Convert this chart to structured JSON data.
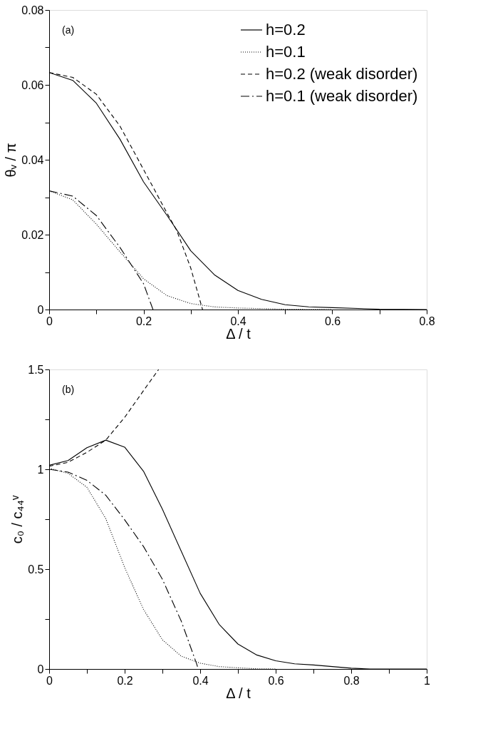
{
  "chart_data": [
    {
      "type": "line",
      "xlabel": "Δ / t",
      "ylabel": "θᵥ / π",
      "annotations": [
        "(a)"
      ],
      "legend": "top right",
      "grid": false,
      "marker": "none",
      "xlim": [
        0,
        0.8
      ],
      "ylim": [
        0,
        0.08
      ],
      "xticks": [
        0,
        {
          "value": 0.1,
          "label": null
        },
        0.2,
        {
          "value": 0.3,
          "label": null
        },
        0.4,
        {
          "value": 0.5,
          "label": null
        },
        0.6,
        {
          "value": 0.7,
          "label": null
        },
        0.8
      ],
      "yticks": [
        0,
        {
          "value": 0.01,
          "label": null
        },
        0.02,
        {
          "value": 0.03,
          "label": null
        },
        0.04,
        {
          "value": 0.05,
          "label": null
        },
        0.06,
        {
          "value": 0.07,
          "label": null
        },
        0.08
      ],
      "series": [
        {
          "name": "h=0.2",
          "color": "#000000",
          "line_style": "solid",
          "x": [
            0,
            0.05,
            0.1,
            0.15,
            0.2,
            0.25,
            0.3,
            0.35,
            0.4,
            0.45,
            0.5,
            0.55,
            0.6,
            0.7,
            0.8
          ],
          "values": [
            0.0633,
            0.0612,
            0.0551,
            0.0455,
            0.0341,
            0.0251,
            0.0157,
            0.0093,
            0.0051,
            0.0027,
            0.0013,
            0.0007,
            0.0005,
            0.0001,
            0
          ]
        },
        {
          "name": "h=0.1",
          "color": "#000000",
          "line_style": "dotted",
          "x": [
            0,
            0.05,
            0.1,
            0.15,
            0.2,
            0.25,
            0.3,
            0.35,
            0.4,
            0.5,
            0.6
          ],
          "values": [
            0.0317,
            0.0293,
            0.0228,
            0.0154,
            0.0082,
            0.0037,
            0.0016,
            0.0007,
            0.0004,
            0.0001,
            0
          ]
        },
        {
          "name": "h=0.2 (weak disorder)",
          "color": "#000000",
          "line_style": "dashed",
          "x": [
            0,
            0.05,
            0.1,
            0.15,
            0.2,
            0.25,
            0.27,
            0.3,
            0.325
          ],
          "values": [
            0.0633,
            0.062,
            0.0575,
            0.049,
            0.0374,
            0.0257,
            0.0212,
            0.0111,
            0
          ]
        },
        {
          "name": "h=0.1 (weak disorder)",
          "color": "#000000",
          "line_style": "dashdot",
          "x": [
            0,
            0.05,
            0.1,
            0.15,
            0.2,
            0.22
          ],
          "values": [
            0.0317,
            0.0303,
            0.0251,
            0.0166,
            0.0069,
            0
          ]
        }
      ]
    },
    {
      "type": "line",
      "xlabel": "Δ / t",
      "ylabel": "c₀ / c₄₄ᵛ",
      "annotations": [
        "(b)"
      ],
      "legend": "top right",
      "grid": false,
      "marker": "none",
      "xlim": [
        0,
        1
      ],
      "ylim": [
        0,
        1.5
      ],
      "xticks": [
        0,
        {
          "value": 0.1,
          "label": null
        },
        0.2,
        {
          "value": 0.3,
          "label": null
        },
        0.4,
        {
          "value": 0.5,
          "label": null
        },
        0.6,
        {
          "value": 0.7,
          "label": null
        },
        0.8,
        {
          "value": 0.9,
          "label": null
        },
        1
      ],
      "yticks": [
        0,
        {
          "value": 0.25,
          "label": null
        },
        0.5,
        {
          "value": 0.75,
          "label": null
        },
        1,
        {
          "value": 1.25,
          "label": null
        },
        1.5
      ],
      "series": [
        {
          "name": "h=0.2",
          "color": "#000000",
          "line_style": "solid",
          "x": [
            0,
            0.05,
            0.1,
            0.15,
            0.2,
            0.25,
            0.3,
            0.35,
            0.4,
            0.45,
            0.5,
            0.55,
            0.6,
            0.65,
            0.7,
            0.75,
            0.8,
            0.85,
            0.9,
            1
          ],
          "values": [
            1.02,
            1.044,
            1.108,
            1.146,
            1.111,
            0.99,
            0.8,
            0.589,
            0.379,
            0.224,
            0.125,
            0.07,
            0.041,
            0.026,
            0.02,
            0.012,
            0.004,
            0,
            0,
            0
          ]
        },
        {
          "name": "h=0.1",
          "color": "#000000",
          "line_style": "dotted",
          "x": [
            0,
            0.05,
            0.1,
            0.15,
            0.2,
            0.25,
            0.3,
            0.35,
            0.4,
            0.45,
            0.5,
            0.55,
            0.6
          ],
          "values": [
            1.005,
            0.98,
            0.91,
            0.753,
            0.508,
            0.298,
            0.146,
            0.064,
            0.029,
            0.012,
            0.006,
            0.001,
            0
          ]
        },
        {
          "name": "h=0.2 (weak disorder)",
          "color": "#000000",
          "line_style": "dashed",
          "x": [
            0,
            0.05,
            0.1,
            0.15,
            0.2,
            0.25,
            0.29
          ],
          "values": [
            1.015,
            1.035,
            1.085,
            1.146,
            1.26,
            1.394,
            1.5
          ]
        },
        {
          "name": "h=0.1 (weak disorder)",
          "color": "#000000",
          "line_style": "dashdot",
          "x": [
            0,
            0.05,
            0.1,
            0.15,
            0.2,
            0.25,
            0.3,
            0.35,
            0.39,
            0.395
          ],
          "values": [
            1.0,
            0.986,
            0.945,
            0.87,
            0.747,
            0.613,
            0.449,
            0.239,
            0.029,
            0
          ]
        }
      ]
    }
  ]
}
